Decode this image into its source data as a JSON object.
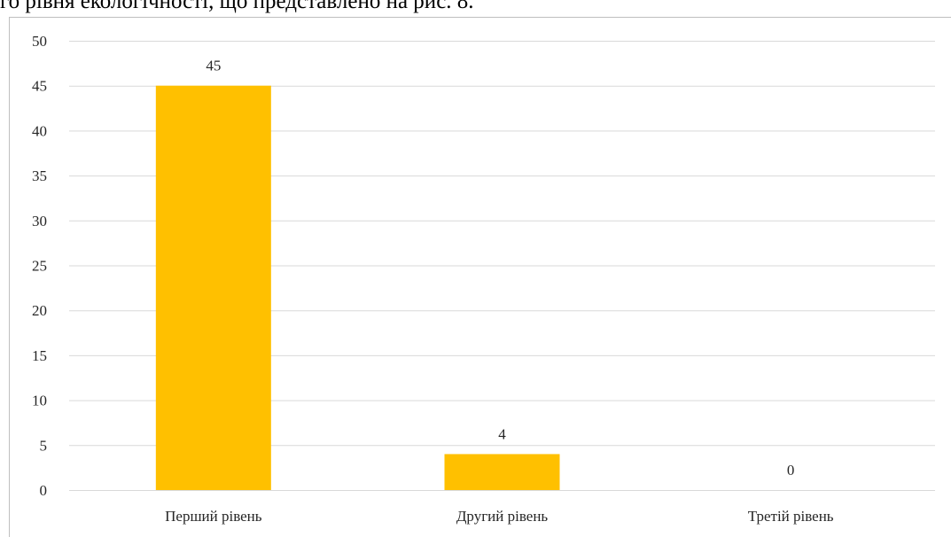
{
  "document_text": "го рівня екологічності, що представлено на рис. 8.",
  "chart_data": {
    "type": "bar",
    "categories": [
      "Перший рівень",
      "Другий рівень",
      "Третій рівень"
    ],
    "values": [
      45,
      4,
      0
    ],
    "color": "#ffc000",
    "ylim": [
      0,
      50
    ],
    "yticks": [
      0,
      5,
      10,
      15,
      20,
      25,
      30,
      35,
      40,
      45,
      50
    ],
    "grid": true
  }
}
